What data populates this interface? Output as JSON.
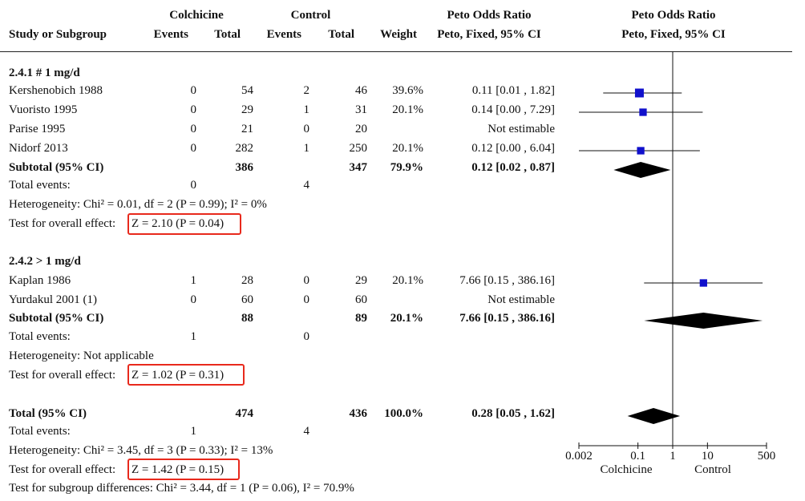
{
  "header": {
    "col_study": "Study or Subgroup",
    "group_exp": "Colchicine",
    "group_ctl": "Control",
    "events": "Events",
    "total": "Total",
    "weight": "Weight",
    "effect_title": "Peto Odds Ratio",
    "effect_method": "Peto, Fixed, 95% CI",
    "plot_title": "Peto Odds Ratio",
    "plot_method": "Peto, Fixed, 95% CI"
  },
  "subgroups": [
    {
      "label": "2.4.1 # 1 mg/d",
      "studies": [
        {
          "name": "Kershenobich 1988",
          "exp_events": "0",
          "exp_total": "54",
          "ctl_events": "2",
          "ctl_total": "46",
          "weight": "39.6%",
          "ci": "0.11 [0.01 , 1.82]"
        },
        {
          "name": "Vuoristo 1995",
          "exp_events": "0",
          "exp_total": "29",
          "ctl_events": "1",
          "ctl_total": "31",
          "weight": "20.1%",
          "ci": "0.14 [0.00 , 7.29]"
        },
        {
          "name": "Parise 1995",
          "exp_events": "0",
          "exp_total": "21",
          "ctl_events": "0",
          "ctl_total": "20",
          "weight": "",
          "ci": "Not estimable"
        },
        {
          "name": "Nidorf 2013",
          "exp_events": "0",
          "exp_total": "282",
          "ctl_events": "1",
          "ctl_total": "250",
          "weight": "20.1%",
          "ci": "0.12 [0.00 , 6.04]"
        }
      ],
      "subtotal": {
        "label": "Subtotal (95% CI)",
        "exp_total": "386",
        "ctl_total": "347",
        "weight": "79.9%",
        "ci": "0.12 [0.02 , 0.87]"
      },
      "total_events": {
        "label": "Total events:",
        "exp": "0",
        "ctl": "4"
      },
      "heterogeneity": "Heterogeneity: Chi² = 0.01, df = 2 (P = 0.99); I² = 0%",
      "overall_label": "Test for overall effect:",
      "overall_value": "Z = 2.10 (P = 0.04)"
    },
    {
      "label": "2.4.2 > 1 mg/d",
      "studies": [
        {
          "name": "Kaplan 1986",
          "exp_events": "1",
          "exp_total": "28",
          "ctl_events": "0",
          "ctl_total": "29",
          "weight": "20.1%",
          "ci": "7.66 [0.15 , 386.16]"
        },
        {
          "name": "Yurdakul 2001 (1)",
          "exp_events": "0",
          "exp_total": "60",
          "ctl_events": "0",
          "ctl_total": "60",
          "weight": "",
          "ci": "Not estimable"
        }
      ],
      "subtotal": {
        "label": "Subtotal (95% CI)",
        "exp_total": "88",
        "ctl_total": "89",
        "weight": "20.1%",
        "ci": "7.66 [0.15 , 386.16]"
      },
      "total_events": {
        "label": "Total events:",
        "exp": "1",
        "ctl": "0"
      },
      "heterogeneity": "Heterogeneity: Not applicable",
      "overall_label": "Test for overall effect:",
      "overall_value": "Z = 1.02 (P = 0.31)"
    }
  ],
  "total": {
    "label": "Total (95% CI)",
    "exp_total": "474",
    "ctl_total": "436",
    "weight": "100.0%",
    "ci": "0.28 [0.05 , 1.62]",
    "events_label": "Total events:",
    "exp_events": "1",
    "ctl_events": "4",
    "heterogeneity": "Heterogeneity: Chi² = 3.45, df = 3 (P = 0.33); I² = 13%",
    "overall_label": "Test for overall effect:",
    "overall_value": "Z = 1.42 (P = 0.15)",
    "subgroup_diff": "Test for subgroup differences: Chi² = 3.44, df = 1 (P = 0.06), I² = 70.9%"
  },
  "colors": {
    "marker": "#1010cc",
    "highlight": "#e8291c"
  },
  "chart_data": {
    "type": "forest",
    "scale": "log",
    "xlim": [
      0.002,
      500
    ],
    "null_value": 1,
    "ticks": [
      0.002,
      0.1,
      1,
      10,
      500
    ],
    "tick_labels": [
      "0.002",
      "0.1",
      "1",
      "10",
      "500"
    ],
    "favours_left": "Colchicine",
    "favours_right": "Control",
    "studies": [
      {
        "name": "Kershenobich 1988",
        "est": 0.11,
        "lo": 0.01,
        "hi": 1.82,
        "weight": 39.6
      },
      {
        "name": "Vuoristo 1995",
        "est": 0.14,
        "lo": 0.002,
        "hi": 7.29,
        "weight": 20.1
      },
      {
        "name": "Nidorf 2013",
        "est": 0.12,
        "lo": 0.002,
        "hi": 6.04,
        "weight": 20.1
      },
      {
        "name": "Kaplan 1986",
        "est": 7.66,
        "lo": 0.15,
        "hi": 386.16,
        "weight": 20.1
      }
    ],
    "diamonds": [
      {
        "name": "Subtotal 2.4.1",
        "est": 0.12,
        "lo": 0.02,
        "hi": 0.87
      },
      {
        "name": "Subtotal 2.4.2",
        "est": 7.66,
        "lo": 0.15,
        "hi": 386.16
      },
      {
        "name": "Total",
        "est": 0.28,
        "lo": 0.05,
        "hi": 1.62
      }
    ]
  }
}
